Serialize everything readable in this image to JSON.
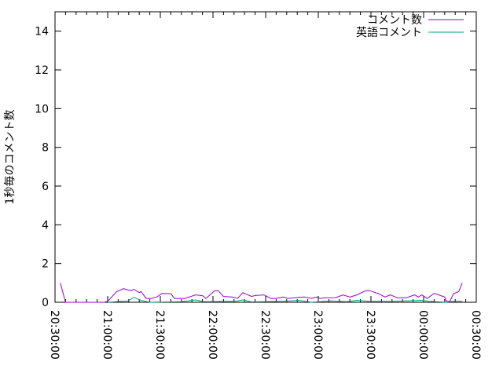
{
  "chart_data": {
    "type": "line",
    "title": "",
    "xlabel": "",
    "ylabel": "1秒毎のコメント数",
    "ylim": [
      0,
      15
    ],
    "xlim": [
      "20:30:00",
      "00:30:00"
    ],
    "yticks": [
      "0",
      "2",
      "4",
      "6",
      "8",
      "10",
      "12",
      "14"
    ],
    "xticks": [
      "20:30:00",
      "21:00:00",
      "21:30:00",
      "22:00:00",
      "22:30:00",
      "23:00:00",
      "23:30:00",
      "00:00:00",
      "00:30:00"
    ],
    "grid": false,
    "legend": "top-right",
    "series": [
      {
        "name": "コメント数",
        "color": "#9400d3",
        "x": [
          "20:33",
          "20:36",
          "20:58",
          "21:00",
          "21:05",
          "21:09",
          "21:13",
          "21:15",
          "21:18",
          "21:19",
          "21:22",
          "21:25",
          "21:28",
          "21:31",
          "21:36",
          "21:38",
          "21:44",
          "21:50",
          "21:54",
          "21:56",
          "22:01",
          "22:03",
          "22:06",
          "22:11",
          "22:14",
          "22:17",
          "22:22",
          "22:24",
          "22:29",
          "22:33",
          "22:36",
          "22:40",
          "22:43",
          "22:47",
          "22:52",
          "22:56",
          "22:59",
          "23:01",
          "23:04",
          "23:10",
          "23:14",
          "23:18",
          "23:22",
          "23:27",
          "23:29",
          "23:34",
          "23:38",
          "23:41",
          "23:45",
          "23:50",
          "23:55",
          "23:57",
          "23:59",
          "00:02",
          "00:06",
          "00:12",
          "00:13",
          "00:15",
          "00:17",
          "00:20",
          "00:22"
        ],
        "values": [
          1.0,
          0,
          0,
          0.05,
          0.54,
          0.7,
          0.6,
          0.67,
          0.5,
          0.55,
          0.2,
          0.2,
          0.27,
          0.46,
          0.44,
          0.2,
          0.2,
          0.38,
          0.34,
          0.2,
          0.6,
          0.6,
          0.3,
          0.27,
          0.2,
          0.5,
          0.3,
          0.35,
          0.38,
          0.2,
          0.2,
          0.27,
          0.2,
          0.24,
          0.27,
          0.2,
          0.27,
          0.2,
          0.23,
          0.24,
          0.38,
          0.27,
          0.38,
          0.6,
          0.6,
          0.46,
          0.27,
          0.38,
          0.23,
          0.23,
          0.38,
          0.27,
          0.38,
          0.2,
          0.46,
          0.27,
          0.05,
          0.05,
          0.44,
          0.55,
          1.0
        ]
      },
      {
        "name": "英語コメント",
        "color": "#009e73",
        "x": [
          "21:00",
          "21:08",
          "21:11",
          "21:15",
          "21:19",
          "21:24",
          "21:42",
          "21:50",
          "21:55",
          "22:13",
          "22:17",
          "22:22",
          "22:40",
          "22:49",
          "22:56",
          "23:07",
          "23:16",
          "23:22",
          "23:29",
          "23:42",
          "23:59",
          "00:03",
          "00:13",
          "00:17",
          "00:22"
        ],
        "values": [
          0,
          0.05,
          0.05,
          0.25,
          0.1,
          0,
          0.03,
          0.12,
          0.03,
          0.05,
          0.12,
          0.02,
          0.05,
          0.1,
          0,
          0.07,
          0.03,
          0.1,
          0.05,
          0.05,
          0.1,
          0.05,
          0,
          0.05,
          0.05
        ]
      }
    ]
  }
}
